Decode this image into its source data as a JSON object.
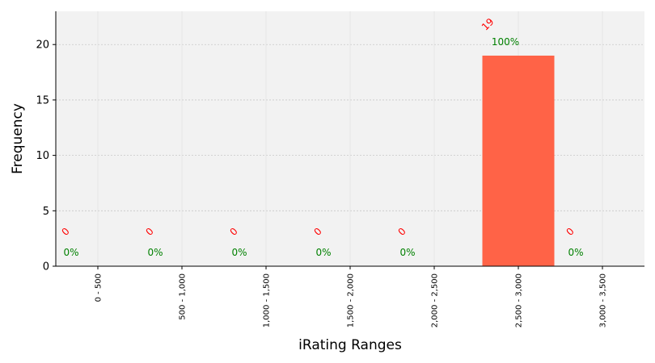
{
  "chart_data": {
    "type": "bar",
    "categories": [
      "0 - 500",
      "500 - 1,000",
      "1,000 - 1,500",
      "1,500 - 2,000",
      "2,000 - 2,500",
      "2,500 - 3,000",
      "3,000 - 3,500"
    ],
    "values": [
      0,
      0,
      0,
      0,
      0,
      19,
      0
    ],
    "count_labels": [
      "0",
      "0",
      "0",
      "0",
      "0",
      "19",
      "0"
    ],
    "percent_labels": [
      "0%",
      "0%",
      "0%",
      "0%",
      "0%",
      "100%",
      "0%"
    ],
    "xlabel": "iRating Ranges",
    "ylabel": "Frequency",
    "ylim": [
      0,
      23
    ],
    "yticks": [
      0,
      5,
      10,
      15,
      20
    ],
    "grid": true,
    "colors": {
      "bar": "#ff6347",
      "plot_background": "#f2f2f2",
      "count_label": "#ff0000",
      "percent_label": "#008000"
    }
  }
}
